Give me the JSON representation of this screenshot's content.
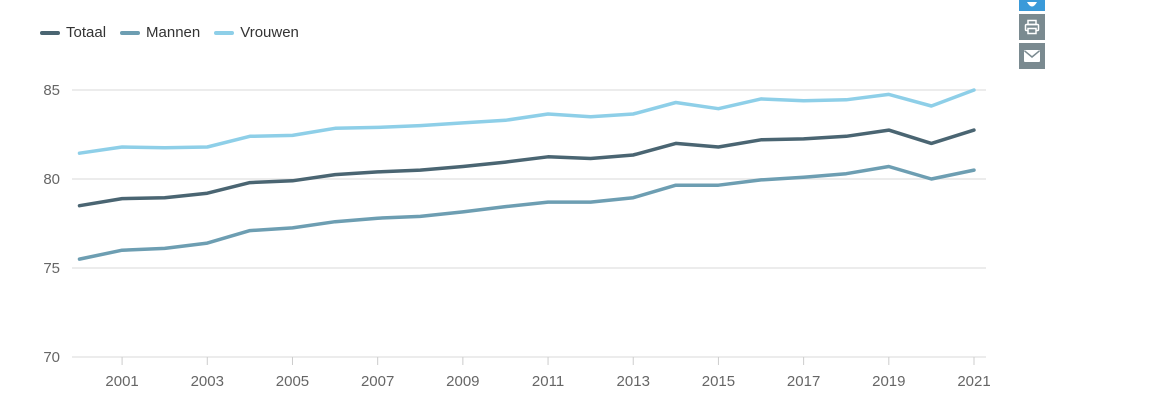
{
  "chart_data": {
    "type": "line",
    "x": [
      2000,
      2001,
      2002,
      2003,
      2004,
      2005,
      2006,
      2007,
      2008,
      2009,
      2010,
      2011,
      2012,
      2013,
      2014,
      2015,
      2016,
      2017,
      2018,
      2019,
      2020,
      2021
    ],
    "x_tick_labels": [
      "2001",
      "2003",
      "2005",
      "2007",
      "2009",
      "2011",
      "2013",
      "2015",
      "2017",
      "2019",
      "2021"
    ],
    "y_tick_labels": [
      "70",
      "75",
      "80",
      "85"
    ],
    "ylim": [
      70,
      87
    ],
    "grid": true,
    "legend_position": "top-left",
    "series": [
      {
        "name": "Totaal",
        "color": "#4a6572",
        "values": [
          78.5,
          78.9,
          78.95,
          79.2,
          79.8,
          79.9,
          80.25,
          80.4,
          80.5,
          80.7,
          80.95,
          81.25,
          81.15,
          81.35,
          82.0,
          81.8,
          82.2,
          82.25,
          82.4,
          82.75,
          82.0,
          82.75
        ]
      },
      {
        "name": "Mannen",
        "color": "#6d9eb2",
        "values": [
          75.5,
          76.0,
          76.1,
          76.4,
          77.1,
          77.25,
          77.6,
          77.8,
          77.9,
          78.15,
          78.45,
          78.7,
          78.7,
          78.95,
          79.65,
          79.65,
          79.95,
          80.1,
          80.3,
          80.7,
          80.0,
          80.5
        ]
      },
      {
        "name": "Vrouwen",
        "color": "#8ecfe8",
        "values": [
          81.45,
          81.8,
          81.75,
          81.8,
          82.4,
          82.45,
          82.85,
          82.9,
          83.0,
          83.15,
          83.3,
          83.65,
          83.5,
          83.65,
          84.3,
          83.95,
          84.5,
          84.4,
          84.45,
          84.75,
          84.1,
          85.0
        ]
      }
    ]
  },
  "share": {
    "buttons": [
      {
        "icon": "twitter-icon",
        "color": "#3a9ad9"
      },
      {
        "icon": "print-icon",
        "color": "#7a8a90"
      },
      {
        "icon": "mail-icon",
        "color": "#7a8a90"
      }
    ]
  }
}
